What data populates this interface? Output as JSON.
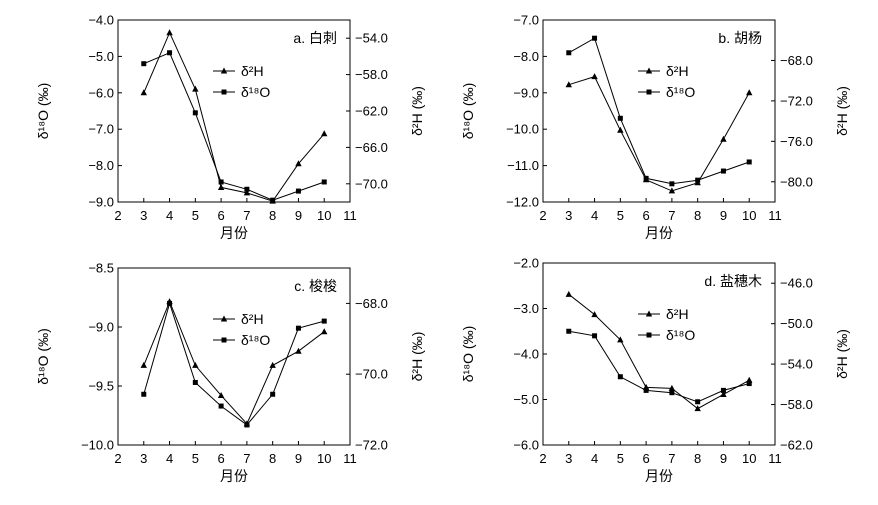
{
  "chart_data": [
    {
      "type": "line",
      "title": "a. 白刺",
      "xlabel": "月份",
      "ylabel_left": "δ¹⁸O (‰)",
      "ylabel_right": "δ²H (‰)",
      "x_ticks": [
        "2",
        "3",
        "4",
        "5",
        "6",
        "7",
        "8",
        "9",
        "10",
        "11"
      ],
      "xlim": [
        2,
        11
      ],
      "ylim_left": [
        -9.0,
        -4.0
      ],
      "yticks_left": [
        "-4.0",
        "-5.0",
        "-6.0",
        "-7.0",
        "-8.0",
        "-9.0"
      ],
      "ylim_right": [
        -72.0,
        -52.0
      ],
      "yticks_right": [
        "-54.0",
        "-58.0",
        "-62.0",
        "-66.0",
        "-70.0"
      ],
      "legend_position": "top-center",
      "series": [
        {
          "name": "δ²H",
          "axis": "right",
          "marker": "triangle",
          "x": [
            3,
            4,
            5,
            6,
            7,
            8,
            9,
            10
          ],
          "values": [
            -60.0,
            -53.4,
            -59.6,
            -70.4,
            -71.0,
            -71.9,
            -67.8,
            -64.5
          ]
        },
        {
          "name": "δ¹⁸O",
          "axis": "left",
          "marker": "square",
          "x": [
            3,
            4,
            5,
            6,
            7,
            8,
            9,
            10
          ],
          "values": [
            -5.2,
            -4.9,
            -6.55,
            -8.45,
            -8.65,
            -8.95,
            -8.7,
            -8.45
          ]
        }
      ]
    },
    {
      "type": "line",
      "title": "b. 胡杨",
      "xlabel": "月份",
      "ylabel_left": "δ¹⁸O (‰)",
      "ylabel_right": "δ²H (‰)",
      "x_ticks": [
        "2",
        "3",
        "4",
        "5",
        "6",
        "7",
        "8",
        "9",
        "10",
        "11"
      ],
      "xlim": [
        2,
        11
      ],
      "ylim_left": [
        -12.0,
        -7.0
      ],
      "yticks_left": [
        "-7.0",
        "-8.0",
        "-9.0",
        "-10.0",
        "-11.0",
        "-12.0"
      ],
      "ylim_right": [
        -82.0,
        -64.0
      ],
      "yticks_right": [
        "-68.0",
        "-72.0",
        "-76.0",
        "-80.0"
      ],
      "legend_position": "top-center",
      "series": [
        {
          "name": "δ²H",
          "axis": "right",
          "marker": "triangle",
          "x": [
            3,
            4,
            5,
            6,
            7,
            8,
            9,
            10
          ],
          "values": [
            -70.4,
            -69.6,
            -74.9,
            -79.8,
            -80.9,
            -80.1,
            -75.8,
            -71.2
          ]
        },
        {
          "name": "δ¹⁸O",
          "axis": "left",
          "marker": "square",
          "x": [
            3,
            4,
            5,
            6,
            7,
            8,
            9,
            10
          ],
          "values": [
            -7.9,
            -7.5,
            -9.7,
            -11.35,
            -11.5,
            -11.4,
            -11.15,
            -10.9
          ]
        }
      ]
    },
    {
      "type": "line",
      "title": "c. 梭梭",
      "xlabel": "月份",
      "ylabel_left": "δ¹⁸O (‰)",
      "ylabel_right": "δ²H (‰)",
      "x_ticks": [
        "2",
        "3",
        "4",
        "5",
        "6",
        "7",
        "8",
        "9",
        "10",
        "11"
      ],
      "xlim": [
        2,
        11
      ],
      "ylim_left": [
        -10.0,
        -8.5
      ],
      "yticks_left": [
        "-8.5",
        "-9.0",
        "-9.5",
        "-10.0"
      ],
      "ylim_right": [
        -72.0,
        -67.0
      ],
      "yticks_right": [
        "-68.0",
        "-70.0",
        "-72.0"
      ],
      "legend_position": "top-center",
      "series": [
        {
          "name": "δ²H",
          "axis": "right",
          "marker": "triangle",
          "x": [
            3,
            4,
            5,
            6,
            7,
            8,
            9,
            10
          ],
          "values": [
            -69.75,
            -67.95,
            -69.75,
            -70.6,
            -71.4,
            -69.75,
            -69.35,
            -68.8
          ]
        },
        {
          "name": "δ¹⁸O",
          "axis": "left",
          "marker": "square",
          "x": [
            3,
            4,
            5,
            6,
            7,
            8,
            9,
            10
          ],
          "values": [
            -9.57,
            -8.8,
            -9.47,
            -9.67,
            -9.83,
            -9.57,
            -9.01,
            -8.95
          ]
        }
      ]
    },
    {
      "type": "line",
      "title": "d. 盐穗木",
      "xlabel": "月份",
      "ylabel_left": "δ¹⁸O (‰)",
      "ylabel_right": "δ²H (‰)",
      "x_ticks": [
        "2",
        "3",
        "4",
        "5",
        "6",
        "7",
        "8",
        "9",
        "10",
        "11"
      ],
      "xlim": [
        2,
        11
      ],
      "ylim_left": [
        -6.0,
        -2.0
      ],
      "yticks_left": [
        "-2.0",
        "-3.0",
        "-4.0",
        "-5.0",
        "-6.0"
      ],
      "ylim_right": [
        -62.0,
        -44.0
      ],
      "yticks_right": [
        "-46.0",
        "-50.0",
        "-54.0",
        "-58.0",
        "-62.0"
      ],
      "legend_position": "top-center",
      "series": [
        {
          "name": "δ²H",
          "axis": "right",
          "marker": "triangle",
          "x": [
            3,
            4,
            5,
            6,
            7,
            8,
            9,
            10
          ],
          "values": [
            -47.1,
            -49.1,
            -51.6,
            -56.3,
            -56.4,
            -58.4,
            -57.0,
            -55.6
          ]
        },
        {
          "name": "δ¹⁸O",
          "axis": "left",
          "marker": "square",
          "x": [
            3,
            4,
            5,
            6,
            7,
            8,
            9,
            10
          ],
          "values": [
            -3.5,
            -3.6,
            -4.5,
            -4.8,
            -4.85,
            -5.05,
            -4.8,
            -4.65
          ]
        }
      ]
    }
  ]
}
